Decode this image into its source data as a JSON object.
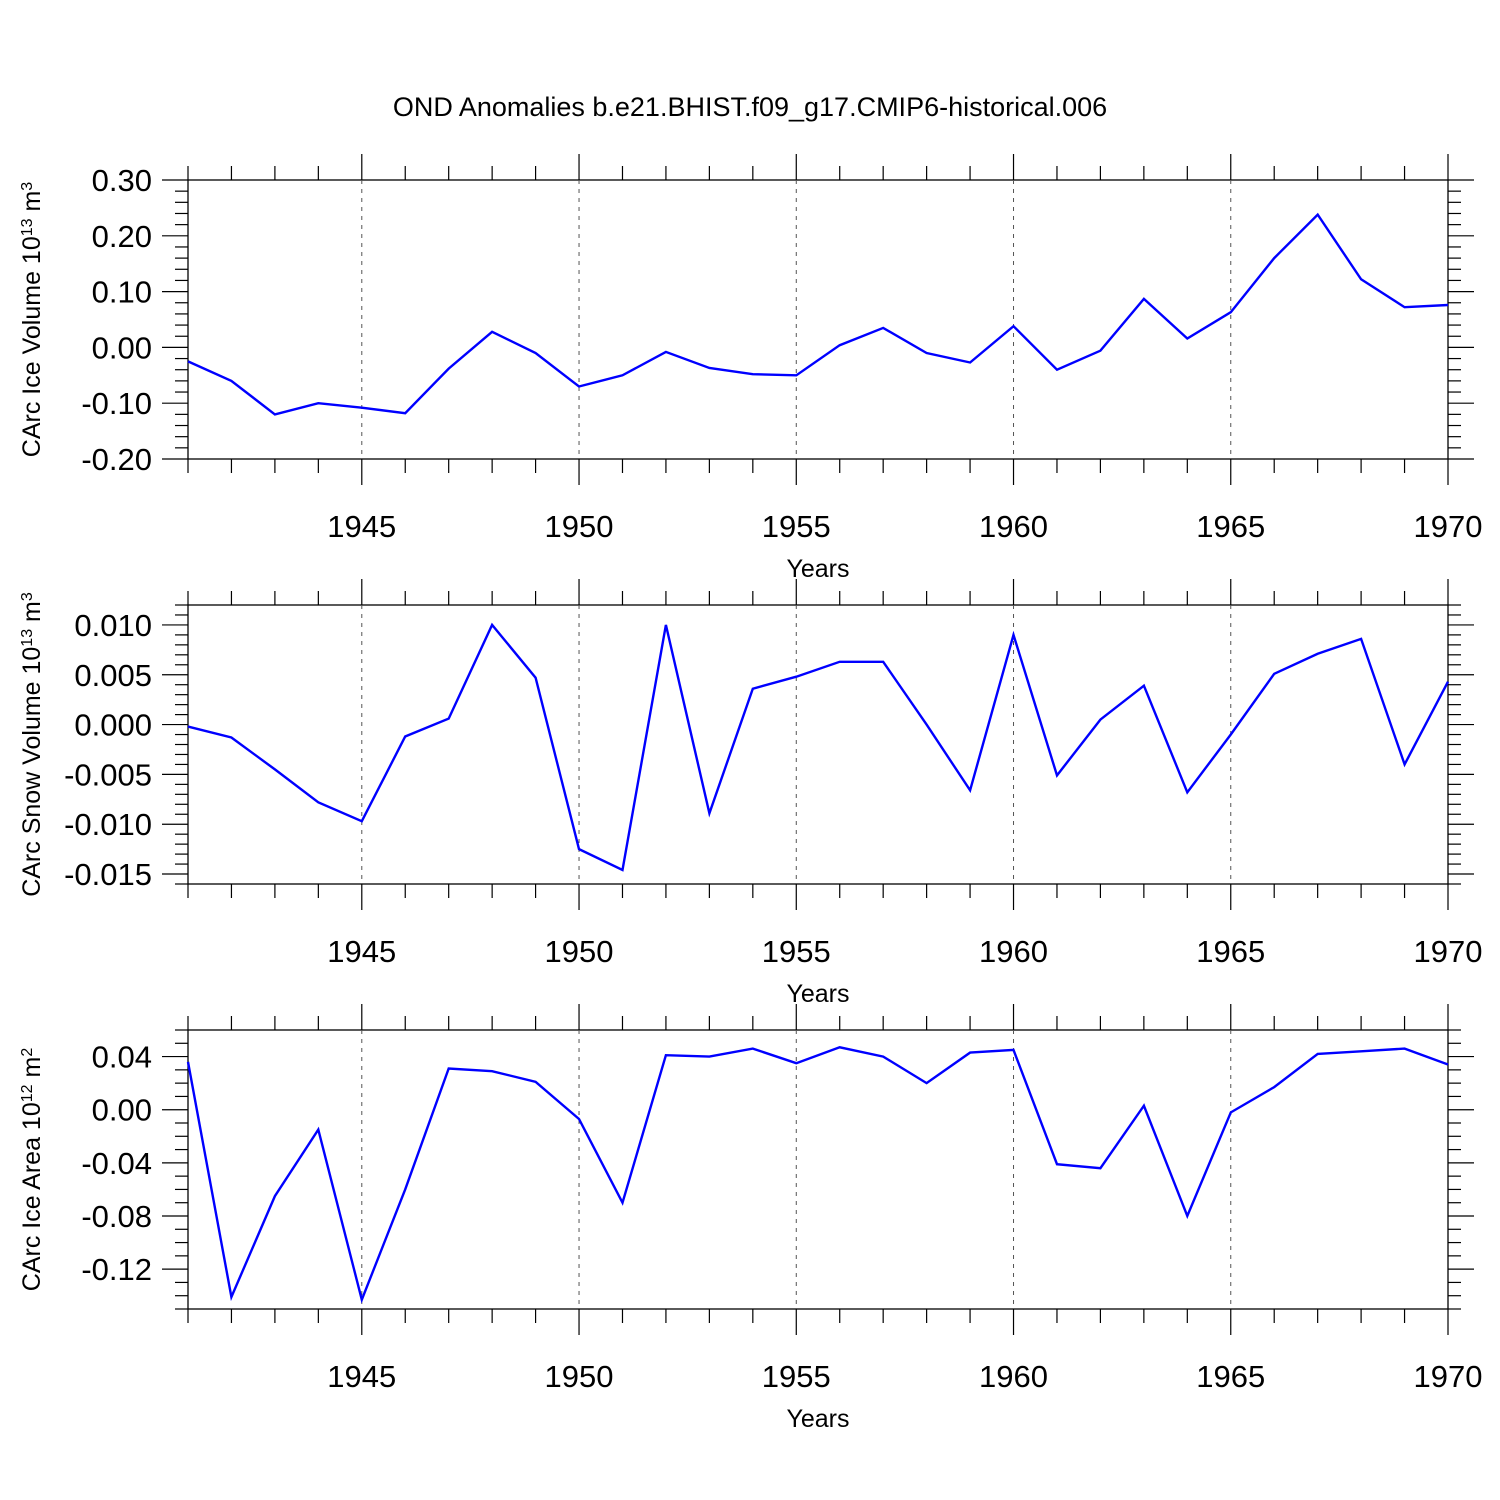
{
  "title": "OND Anomalies b.e21.BHIST.f09_g17.CMIP6-historical.006",
  "line_color": "#0000ff",
  "chart_data": [
    {
      "type": "line",
      "ylabel": {
        "base": "CArc Ice Volume 10",
        "exp": "13",
        "unit": " m",
        "unit_exp": "3"
      },
      "xlabel": "Years",
      "xlim": [
        1941,
        1970
      ],
      "ylim": [
        -0.2,
        0.3
      ],
      "yticks": [
        -0.2,
        -0.1,
        0.0,
        0.1,
        0.2,
        0.3
      ],
      "yticklabels": [
        "-0.20",
        "-0.10",
        "0.00",
        "0.10",
        "0.20",
        "0.30"
      ],
      "yminor_step": 0.02,
      "xticks": [
        1945,
        1950,
        1955,
        1960,
        1965,
        1970
      ],
      "xticklabels": [
        "1945",
        "1950",
        "1955",
        "1960",
        "1965",
        "1970"
      ],
      "x": [
        1941,
        1942,
        1943,
        1944,
        1945,
        1946,
        1947,
        1948,
        1949,
        1950,
        1951,
        1952,
        1953,
        1954,
        1955,
        1956,
        1957,
        1958,
        1959,
        1960,
        1961,
        1962,
        1963,
        1964,
        1965,
        1966,
        1967,
        1968,
        1969,
        1970
      ],
      "values": [
        -0.025,
        -0.06,
        -0.12,
        -0.1,
        -0.108,
        -0.118,
        -0.038,
        0.028,
        -0.01,
        -0.07,
        -0.05,
        -0.008,
        -0.037,
        -0.048,
        -0.05,
        0.004,
        0.035,
        -0.01,
        -0.027,
        0.038,
        -0.04,
        -0.006,
        0.087,
        0.016,
        0.063,
        0.16,
        0.238,
        0.122,
        0.072,
        0.076
      ]
    },
    {
      "type": "line",
      "ylabel": {
        "base": "CArc Snow Volume 10",
        "exp": "13",
        "unit": " m",
        "unit_exp": "3"
      },
      "xlabel": "Years",
      "xlim": [
        1941,
        1970
      ],
      "ylim": [
        -0.016,
        0.012
      ],
      "yticks": [
        -0.015,
        -0.01,
        -0.005,
        0.0,
        0.005,
        0.01
      ],
      "yticklabels": [
        "-0.015",
        "-0.010",
        "-0.005",
        "0.000",
        "0.005",
        "0.010"
      ],
      "yminor_step": 0.001,
      "xticks": [
        1945,
        1950,
        1955,
        1960,
        1965,
        1970
      ],
      "xticklabels": [
        "1945",
        "1950",
        "1955",
        "1960",
        "1965",
        "1970"
      ],
      "x": [
        1941,
        1942,
        1943,
        1944,
        1945,
        1946,
        1947,
        1948,
        1949,
        1950,
        1951,
        1952,
        1953,
        1954,
        1955,
        1956,
        1957,
        1958,
        1959,
        1960,
        1961,
        1962,
        1963,
        1964,
        1965,
        1966,
        1967,
        1968,
        1969,
        1970
      ],
      "values": [
        -0.0002,
        -0.0013,
        -0.0045,
        -0.0078,
        -0.0097,
        -0.0012,
        0.0006,
        0.01,
        0.0047,
        -0.0125,
        -0.0146,
        0.01,
        -0.0089,
        0.0036,
        0.0048,
        0.0063,
        0.0063,
        0.0,
        -0.0066,
        0.009,
        -0.0051,
        0.0005,
        0.0039,
        -0.0068,
        -0.001,
        0.0051,
        0.0071,
        0.0086,
        -0.004,
        0.0043
      ]
    },
    {
      "type": "line",
      "ylabel": {
        "base": "CArc Ice Area 10",
        "exp": "12",
        "unit": " m",
        "unit_exp": "2"
      },
      "xlabel": "Years",
      "xlim": [
        1941,
        1970
      ],
      "ylim": [
        -0.15,
        0.06
      ],
      "yticks": [
        -0.12,
        -0.08,
        -0.04,
        0.0,
        0.04
      ],
      "yticklabels": [
        "-0.12",
        "-0.08",
        "-0.04",
        "0.00",
        "0.04"
      ],
      "yminor_step": 0.01,
      "xticks": [
        1945,
        1950,
        1955,
        1960,
        1965,
        1970
      ],
      "xticklabels": [
        "1945",
        "1950",
        "1955",
        "1960",
        "1965",
        "1970"
      ],
      "x": [
        1941,
        1942,
        1943,
        1944,
        1945,
        1946,
        1947,
        1948,
        1949,
        1950,
        1951,
        1952,
        1953,
        1954,
        1955,
        1956,
        1957,
        1958,
        1959,
        1960,
        1961,
        1962,
        1963,
        1964,
        1965,
        1966,
        1967,
        1968,
        1969,
        1970
      ],
      "values": [
        0.036,
        -0.141,
        -0.065,
        -0.015,
        -0.143,
        -0.06,
        0.031,
        0.029,
        0.021,
        -0.007,
        -0.07,
        0.041,
        0.04,
        0.046,
        0.035,
        0.047,
        0.04,
        0.02,
        0.043,
        0.045,
        -0.041,
        -0.044,
        0.003,
        -0.08,
        -0.002,
        0.017,
        0.042,
        0.044,
        0.046,
        0.034
      ]
    }
  ]
}
